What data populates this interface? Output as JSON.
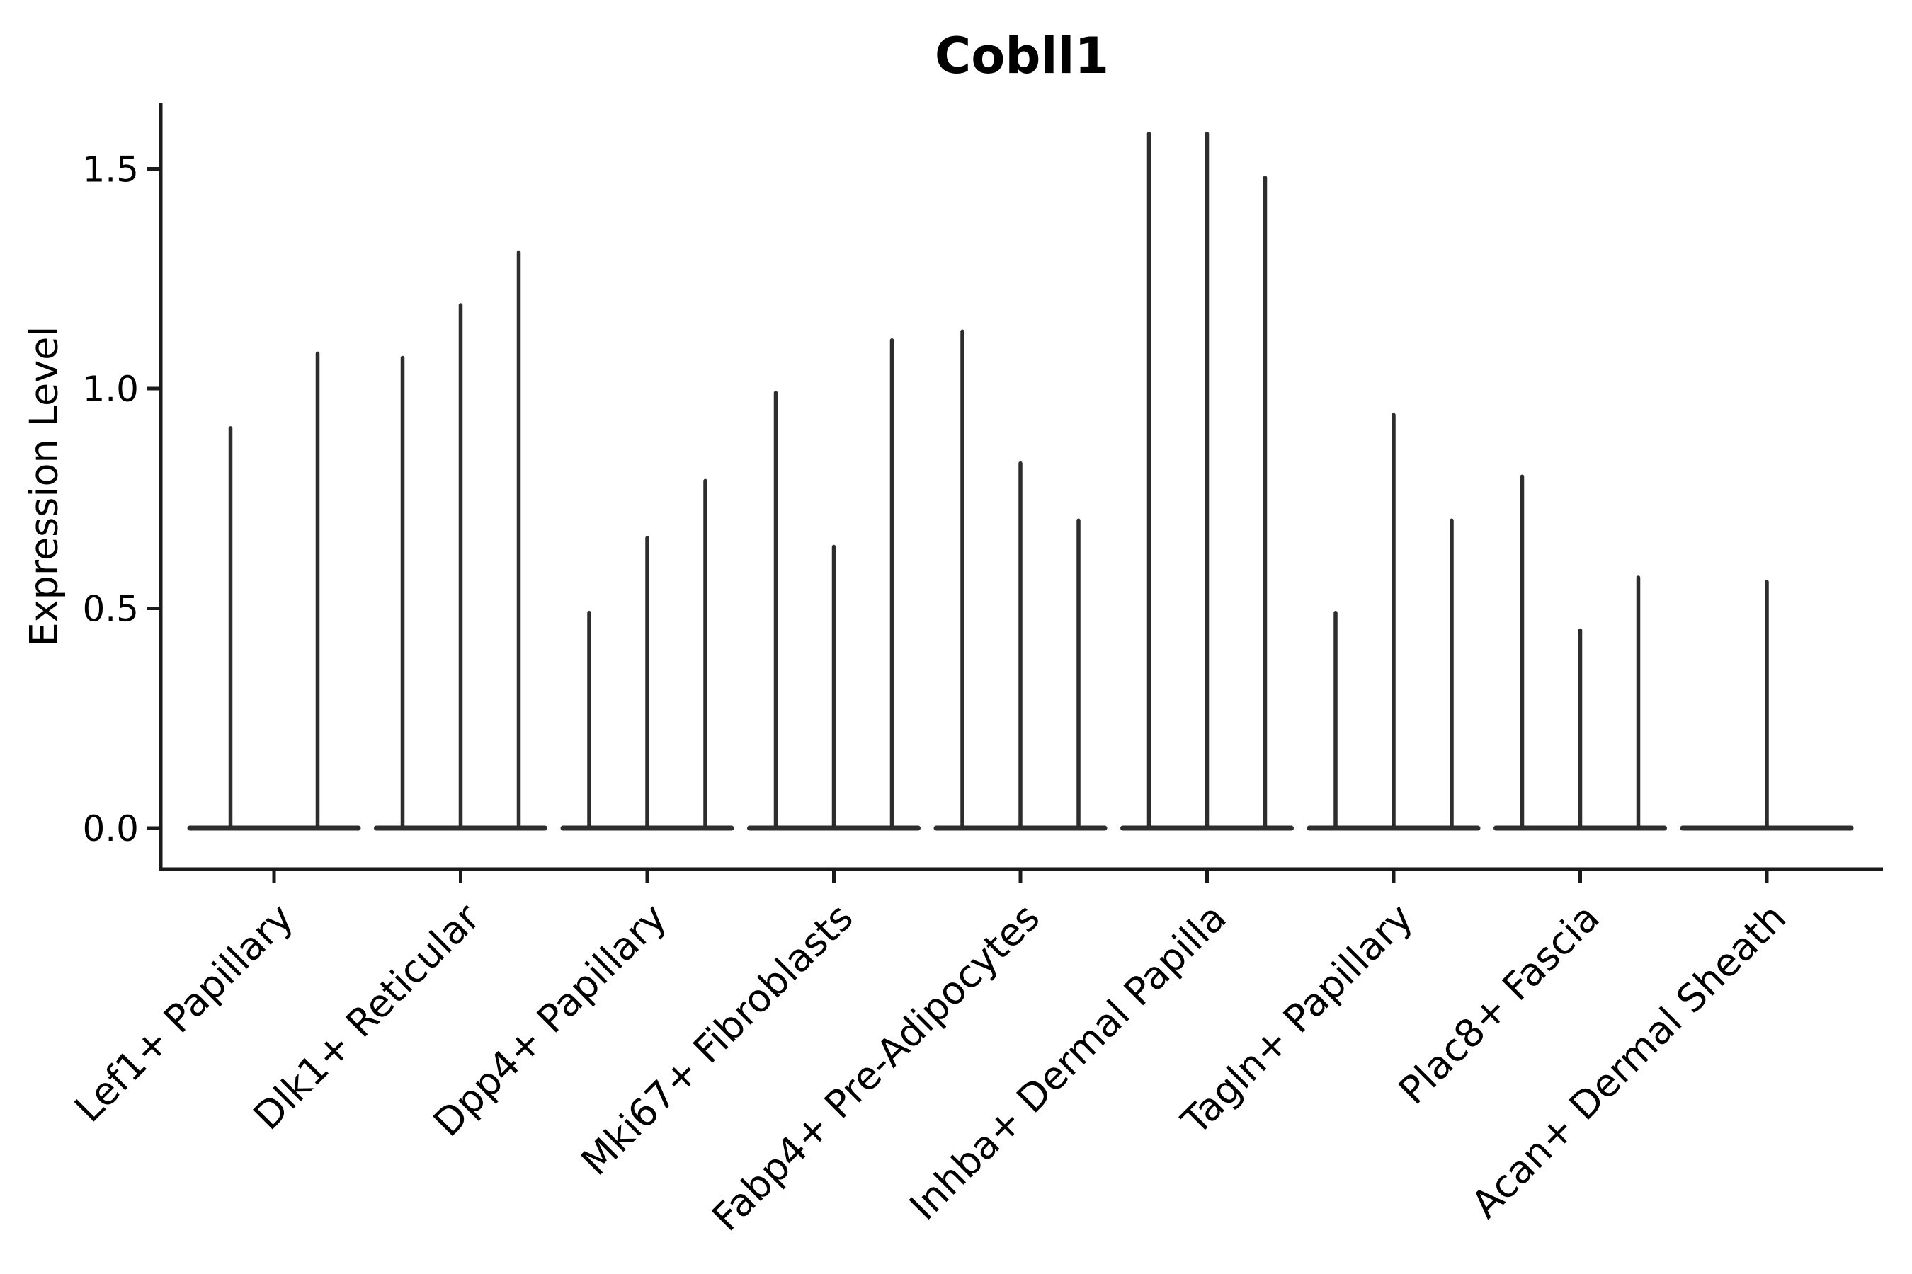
{
  "figure": {
    "title": "Cobll1",
    "y_axis": {
      "label": "Expression Level",
      "tick_labels": [
        "0.0",
        "0.5",
        "1.0",
        "1.5"
      ]
    }
  },
  "colors": {
    "ink": "#000000",
    "axis": "#1a1a1a",
    "violin": "#2d2d2d",
    "background": "#ffffff"
  },
  "chart_data": {
    "type": "violin",
    "title": "Cobll1",
    "xlabel": "",
    "ylabel": "Expression Level",
    "ylim": [
      -0.09,
      1.65
    ],
    "yticks": [
      0.0,
      0.5,
      1.0,
      1.5
    ],
    "grid": false,
    "legend": null,
    "description": "Collapsed violin plot (most density at 0): each violin renders as a flat base at 0 with a thin spike up to its maximum expression value; violins are grouped per cell-type category.",
    "categories": [
      "Lef1+ Papillary",
      "Dlk1+ Reticular",
      "Dpp4+ Papillary",
      "Mki67+ Fibroblasts",
      "Fabp4+ Pre-Adipocytes",
      "Inhba+ Dermal Papilla",
      "Tagln+ Papillary",
      "Plac8+ Fascia",
      "Acan+ Dermal Sheath"
    ],
    "groups": [
      {
        "label": "Lef1+ Papillary",
        "violin_max_values": [
          0.91,
          1.08
        ]
      },
      {
        "label": "Dlk1+ Reticular",
        "violin_max_values": [
          1.07,
          1.19,
          1.31
        ]
      },
      {
        "label": "Dpp4+ Papillary",
        "violin_max_values": [
          0.49,
          0.66,
          0.79
        ]
      },
      {
        "label": "Mki67+ Fibroblasts",
        "violin_max_values": [
          0.99,
          0.64,
          1.11
        ]
      },
      {
        "label": "Fabp4+ Pre-Adipocytes",
        "violin_max_values": [
          1.13,
          0.83,
          0.7
        ]
      },
      {
        "label": "Inhba+ Dermal Papilla",
        "violin_max_values": [
          1.58,
          1.58,
          1.48
        ]
      },
      {
        "label": "Tagln+ Papillary",
        "violin_max_values": [
          0.49,
          0.94,
          0.7
        ]
      },
      {
        "label": "Plac8+ Fascia",
        "violin_max_values": [
          0.8,
          0.45,
          0.57
        ]
      },
      {
        "label": "Acan+ Dermal Sheath",
        "violin_max_values": [
          0.56
        ]
      }
    ]
  }
}
